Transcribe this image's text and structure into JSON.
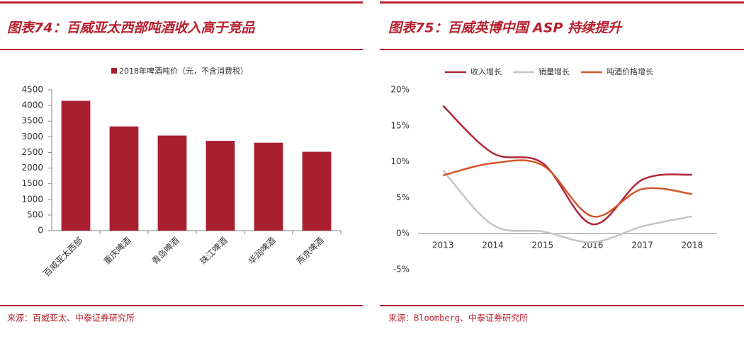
{
  "chart_data": [
    {
      "type": "bar",
      "title": "图表74：百威亚太西部吨酒收入高于竞品",
      "source": "来源：百威亚太、中泰证券研究所",
      "categories": [
        "百威亚太西部",
        "重庆啤酒",
        "青岛啤酒",
        "珠江啤酒",
        "华润啤酒",
        "燕京啤酒"
      ],
      "series": [
        {
          "name": "2018年啤酒吨价（元，不含消费税）",
          "color": "#a8202f",
          "values": [
            4150,
            3330,
            3040,
            2870,
            2810,
            2520
          ]
        }
      ],
      "ylim": [
        0,
        4500
      ],
      "yticks": [
        0,
        500,
        1000,
        1500,
        2000,
        2500,
        3000,
        3500,
        4000,
        4500
      ]
    },
    {
      "type": "line",
      "title": "图表75：百威英博中国 ASP 持续提升",
      "source": "来源：Bloomberg、中泰证券研究所",
      "x": [
        2013,
        2014,
        2015,
        2016,
        2017,
        2018
      ],
      "xlim": [
        2012.5,
        2018.5
      ],
      "series": [
        {
          "name": "收入增长",
          "color": "#b0263a",
          "values": [
            17.8,
            11.2,
            9.8,
            1.3,
            7.5,
            8.2
          ]
        },
        {
          "name": "销量增长",
          "color": "#c4c4c4",
          "values": [
            8.8,
            1.2,
            0.3,
            -1.2,
            1.0,
            2.4
          ]
        },
        {
          "name": "吨酒价格增长",
          "color": "#d0562a",
          "values": [
            8.1,
            9.8,
            9.5,
            2.4,
            6.2,
            5.5
          ]
        }
      ],
      "ylim": [
        -5,
        20
      ],
      "yticks": [
        {
          "value": -5,
          "label": "-5%"
        },
        {
          "value": 0,
          "label": "0%"
        },
        {
          "value": 5,
          "label": "5%"
        },
        {
          "value": 10,
          "label": "10%"
        },
        {
          "value": 15,
          "label": "15%"
        },
        {
          "value": 20,
          "label": "20%"
        }
      ]
    }
  ]
}
